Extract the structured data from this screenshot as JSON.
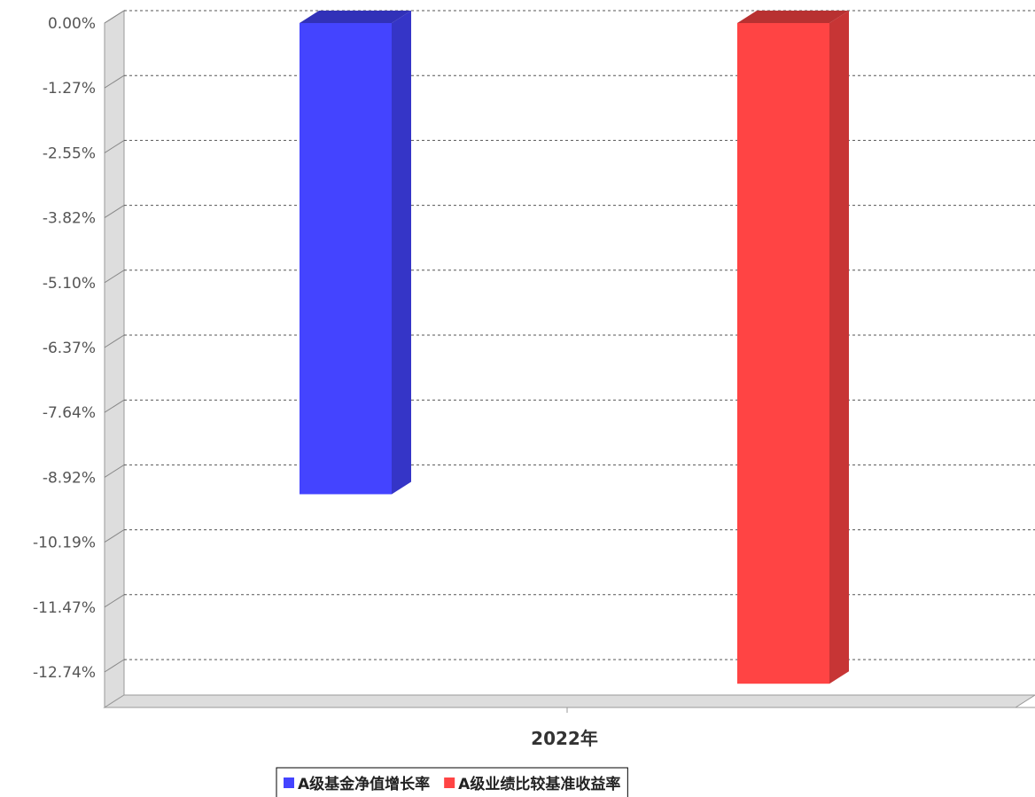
{
  "chart_data": {
    "type": "bar",
    "categories": [
      "2022年"
    ],
    "series": [
      {
        "name": "A级基金净值增长率",
        "color": "#4444ff",
        "values": [
          -9.25
        ]
      },
      {
        "name": "A级业绩比较基准收益率",
        "color": "#ff4444",
        "values": [
          -12.97
        ]
      }
    ],
    "y_ticks": [
      "0.00%",
      "-1.27%",
      "-2.55%",
      "-3.82%",
      "-5.10%",
      "-6.37%",
      "-7.64%",
      "-8.92%",
      "-10.19%",
      "-11.47%",
      "-12.74%"
    ],
    "y_tick_values": [
      0,
      -1.274,
      -2.548,
      -3.822,
      -5.096,
      -6.37,
      -7.644,
      -8.918,
      -10.192,
      -11.466,
      -12.74
    ],
    "ylim": [
      -13.0,
      0
    ],
    "grid": true,
    "gridline_style": "dashed",
    "legend_position": "bottom",
    "style": "3d-bars"
  }
}
